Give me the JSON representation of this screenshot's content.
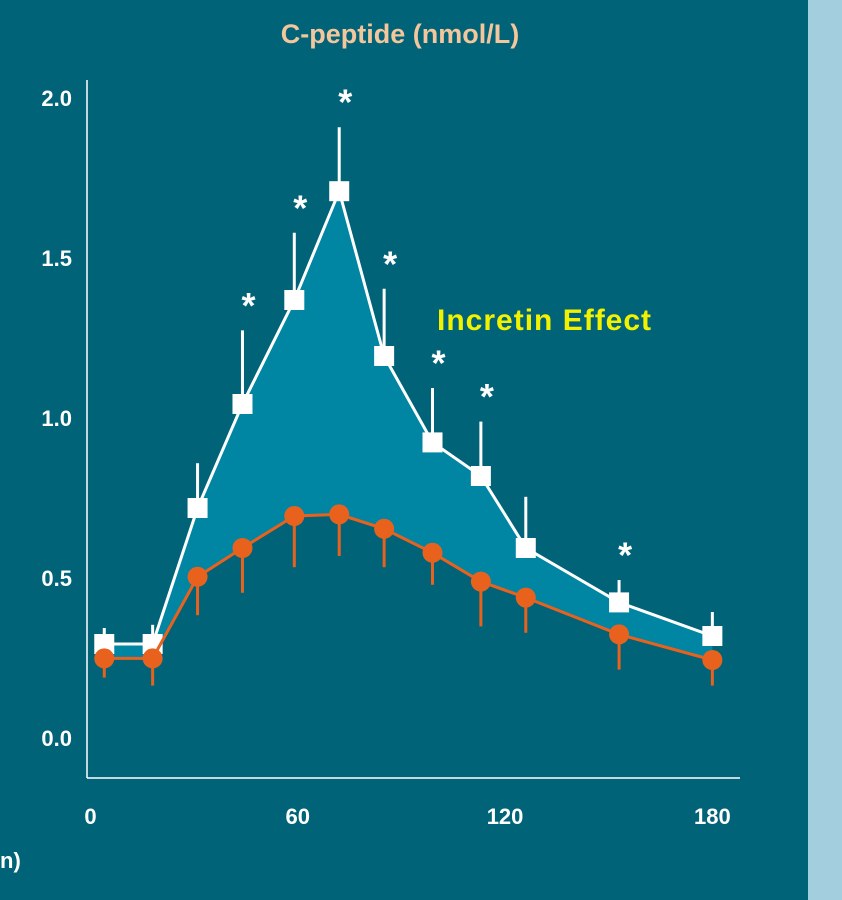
{
  "chart_data": {
    "type": "line",
    "title": "C-peptide (nmol/L)",
    "x_label": "n)",
    "annotation": "Incretin Effect",
    "x": [
      4,
      18,
      31,
      44,
      59,
      72,
      85,
      99,
      113,
      126,
      153,
      180
    ],
    "series": [
      {
        "color": "#ffffff",
        "marker": "square",
        "values": [
          0.3,
          0.3,
          0.725,
          1.05,
          1.375,
          1.715,
          1.2,
          0.93,
          0.825,
          0.6,
          0.43,
          0.325
        ],
        "errors": [
          0.05,
          0.06,
          0.14,
          0.23,
          0.21,
          0.2,
          0.21,
          0.17,
          0.17,
          0.16,
          0.07,
          0.075
        ],
        "significance": [
          null,
          null,
          null,
          "*",
          "*",
          "*",
          "*",
          "*",
          "*",
          null,
          "*",
          null
        ]
      },
      {
        "color": "#e8621e",
        "marker": "circle",
        "values": [
          0.255,
          0.255,
          0.51,
          0.6,
          0.7,
          0.705,
          0.66,
          0.585,
          0.495,
          0.445,
          0.33,
          0.25
        ],
        "errors": [
          0.06,
          0.085,
          0.12,
          0.14,
          0.16,
          0.13,
          0.12,
          0.1,
          0.14,
          0.11,
          0.11,
          0.08
        ]
      }
    ],
    "fill_between_color": "#0085a3",
    "xlim": [
      -1,
      188
    ],
    "xticks": [
      0,
      60,
      120,
      180
    ],
    "ylim": [
      -0.1,
      2.05
    ],
    "yticks": [
      {
        "value": 0,
        "label": "0.0"
      },
      {
        "value": 0.5,
        "label": "0.5"
      },
      {
        "value": 1,
        "label": "1.0"
      },
      {
        "value": 1.5,
        "label": "1.5"
      },
      {
        "value": 2,
        "label": "2.0"
      }
    ]
  }
}
